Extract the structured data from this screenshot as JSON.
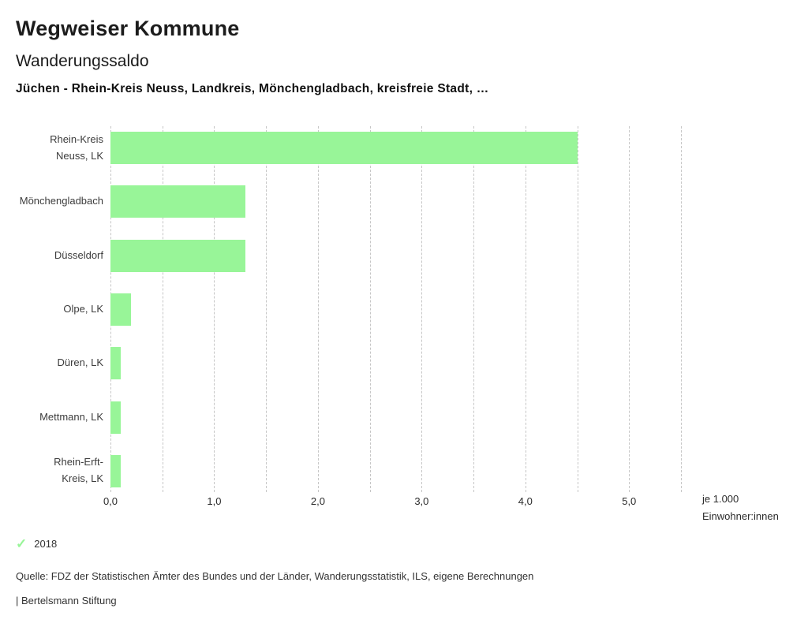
{
  "header": {
    "app_title": "Wegweiser Kommune",
    "chart_title": "Wanderungssaldo",
    "subtitle": "Jüchen - Rhein-Kreis Neuss, Landkreis, Mönchengladbach, kreisfreie Stadt, …"
  },
  "chart_data": {
    "type": "bar",
    "orientation": "horizontal",
    "title": "Wanderungssaldo",
    "categories": [
      "Rhein-Kreis Neuss, LK",
      "Mönchengladbach",
      "Düsseldorf",
      "Olpe, LK",
      "Düren, LK",
      "Mettmann, LK",
      "Rhein-Erft-Kreis, LK"
    ],
    "category_lines": [
      [
        "Rhein-Kreis",
        "Neuss, LK"
      ],
      [
        "Mönchengladbach"
      ],
      [
        "Düsseldorf"
      ],
      [
        "Olpe, LK"
      ],
      [
        "Düren, LK"
      ],
      [
        "Mettmann, LK"
      ],
      [
        "Rhein-Erft-",
        "Kreis, LK"
      ]
    ],
    "series": [
      {
        "name": "2018",
        "color": "#98f598",
        "values": [
          4.5,
          1.3,
          1.3,
          0.2,
          0.1,
          0.1,
          0.1
        ]
      }
    ],
    "xlabel": "je 1.000 Einwohner:innen",
    "unit_label_lines": [
      "je 1.000",
      "Einwohner:innen"
    ],
    "xlim": [
      0,
      5.5
    ],
    "grid": true,
    "grid_step": 0.5,
    "tick_step": 1.0,
    "tick_labels": [
      "0,0",
      "1,0",
      "2,0",
      "3,0",
      "4,0",
      "5,0"
    ],
    "legend_position": "bottom-left"
  },
  "legend": {
    "label": "2018",
    "check_icon": "checkmark-icon",
    "check_color": "#98f598"
  },
  "footer": {
    "source": "Quelle: FDZ der Statistischen Ämter des Bundes und der Länder, Wanderungsstatistik, ILS, eigene Berechnungen",
    "attribution": "| Bertelsmann Stiftung"
  },
  "colors": {
    "bar": "#98f598",
    "grid": "#c6c6c6",
    "text": "#333333"
  }
}
